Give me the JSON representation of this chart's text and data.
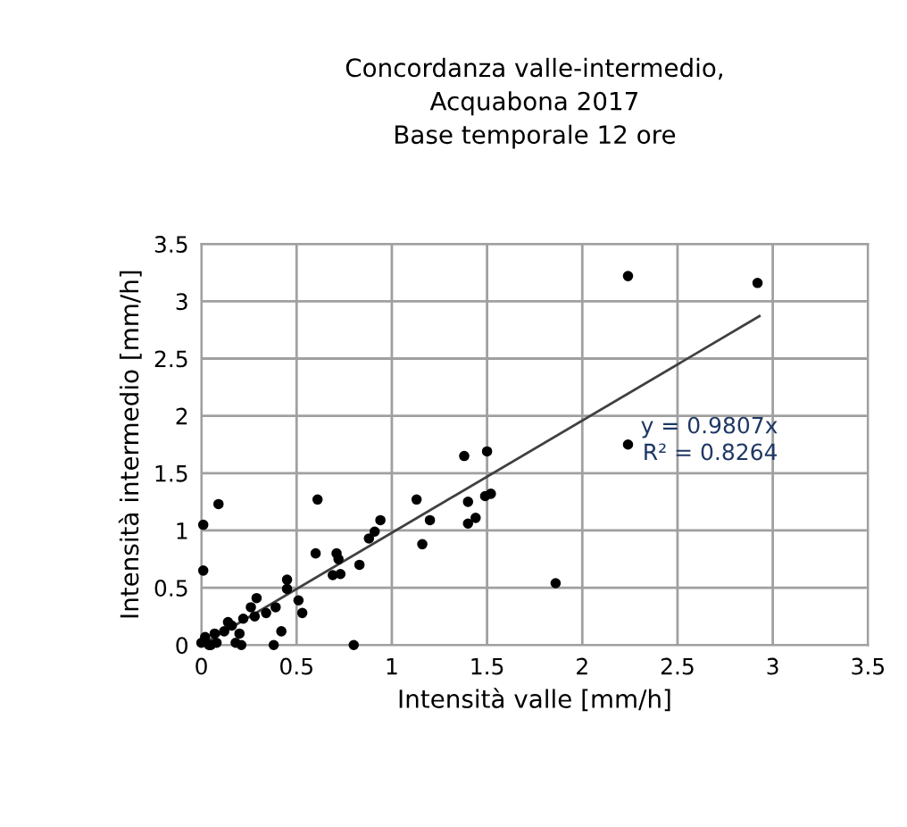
{
  "chart_data": {
    "type": "scatter",
    "title": "Concordanza valle-intermedio,\nAcquabona 2017\nBase temporale 12 ore",
    "xlabel": "Intensità valle [mm/h]",
    "ylabel": "Intensità intermedio [mm/h]",
    "xlim": [
      0,
      3.5
    ],
    "ylim": [
      0,
      3.5
    ],
    "xticks": [
      0,
      0.5,
      1,
      1.5,
      2,
      2.5,
      3,
      3.5
    ],
    "yticks": [
      0,
      0.5,
      1,
      1.5,
      2,
      2.5,
      3,
      3.5
    ],
    "grid": true,
    "marker": "circle",
    "legend": false,
    "series": [
      {
        "color": "#000000",
        "x": [
          2.24,
          2.92,
          2.24,
          1.86,
          1.38,
          1.5,
          1.13,
          0.94,
          1.2,
          1.16,
          0.91,
          0.88,
          1.4,
          1.4,
          1.44,
          1.49,
          1.52,
          0.01,
          0.09,
          0.01,
          0.61,
          0.6,
          0.71,
          0.72,
          0.73,
          0.69,
          0.83,
          0.45,
          0.45,
          0.51,
          0.53,
          0.39,
          0.42,
          0.38,
          0.8,
          0.29,
          0.26,
          0.22,
          0.16,
          0.14,
          0.12,
          0.2,
          0.18,
          0.21,
          0.07,
          0.08,
          0.02,
          0.0,
          0.04,
          0.05,
          0.28,
          0.34
        ],
        "values": [
          3.22,
          3.16,
          1.75,
          0.54,
          1.65,
          1.69,
          1.27,
          1.09,
          1.09,
          0.88,
          0.99,
          0.93,
          1.25,
          1.06,
          1.11,
          1.3,
          1.32,
          1.05,
          1.23,
          0.65,
          1.27,
          0.8,
          0.8,
          0.75,
          0.62,
          0.61,
          0.7,
          0.57,
          0.49,
          0.39,
          0.28,
          0.33,
          0.12,
          0.0,
          0.0,
          0.41,
          0.33,
          0.23,
          0.17,
          0.2,
          0.12,
          0.1,
          0.02,
          0.0,
          0.1,
          0.02,
          0.07,
          0.02,
          0.0,
          0.0,
          0.25,
          0.28
        ]
      },
      {
        "type": "line",
        "marker": "none",
        "color": "#404040",
        "x": [
          0,
          2.93
        ],
        "values": [
          0,
          2.87
        ]
      }
    ],
    "annotations": [
      "y = 0.9807x\nR² = 0.8264"
    ]
  }
}
